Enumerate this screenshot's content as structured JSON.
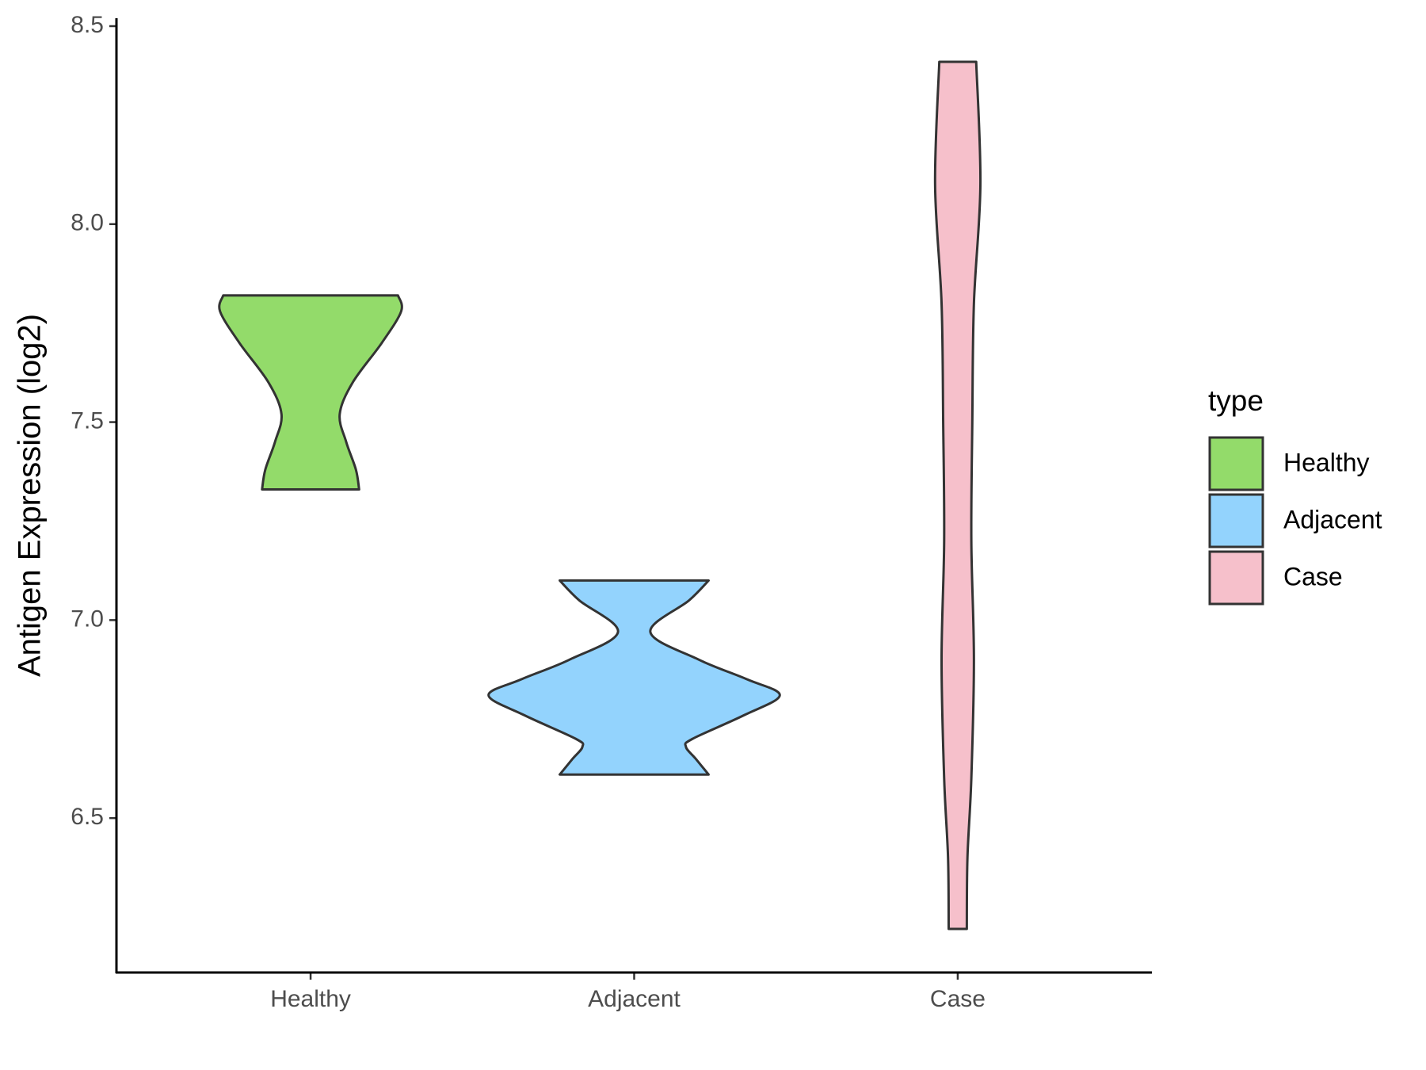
{
  "chart_data": {
    "type": "violin",
    "y_label": "Antigen Expression (log2)",
    "categories": [
      "Healthy",
      "Adjacent",
      "Case"
    ],
    "ylim": [
      6.11,
      8.52
    ],
    "yticks": [
      {
        "value": 6.5,
        "label": "6.5"
      },
      {
        "value": 7,
        "label": "7.0"
      },
      {
        "value": 7.5,
        "label": "7.5"
      },
      {
        "value": 8,
        "label": "8.0"
      },
      {
        "value": 8.5,
        "label": "8.5"
      }
    ],
    "legend_title": "type",
    "legend_position": "right",
    "series": [
      {
        "name": "Healthy",
        "color": "#93db6a",
        "y": [
          7.82,
          7.78,
          7.7,
          7.6,
          7.52,
          7.45,
          7.38,
          7.33
        ],
        "half_widths": [
          0.27,
          0.28,
          0.22,
          0.13,
          0.09,
          0.11,
          0.14,
          0.15
        ]
      },
      {
        "name": "Adjacent",
        "color": "#93d3fd",
        "y": [
          7.1,
          7.05,
          6.97,
          6.9,
          6.85,
          6.81,
          6.76,
          6.7,
          6.68,
          6.65,
          6.61
        ],
        "half_widths": [
          0.23,
          0.17,
          0.05,
          0.2,
          0.35,
          0.45,
          0.34,
          0.18,
          0.16,
          0.19,
          0.23
        ]
      },
      {
        "name": "Case",
        "color": "#f6c0cb",
        "y": [
          8.41,
          8.1,
          7.8,
          7.5,
          7.2,
          6.9,
          6.6,
          6.4,
          6.22
        ],
        "half_widths": [
          0.057,
          0.07,
          0.05,
          0.045,
          0.042,
          0.05,
          0.042,
          0.03,
          0.028
        ]
      }
    ]
  }
}
